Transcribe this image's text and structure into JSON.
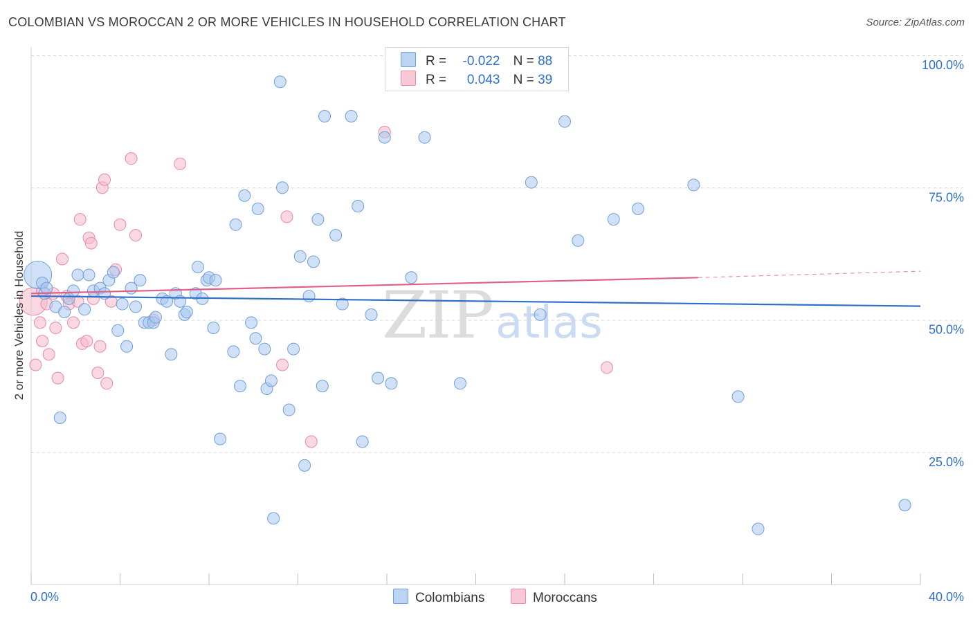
{
  "header": {
    "title": "COLOMBIAN VS MOROCCAN 2 OR MORE VEHICLES IN HOUSEHOLD CORRELATION CHART",
    "source": "Source: ZipAtlas.com"
  },
  "legend": {
    "rows": [
      {
        "r_label": "R =",
        "r_value": "-0.022",
        "n_label": "N =",
        "n_value": "88"
      },
      {
        "r_label": "R =",
        "r_value": "0.043",
        "n_label": "N =",
        "n_value": "39"
      }
    ]
  },
  "bottom_legend": {
    "colombians": "Colombians",
    "moroccans": "Moroccans"
  },
  "watermark": {
    "zip": "ZIP",
    "atlas": "atlas"
  },
  "colors": {
    "blue_fill": "#aac8f0",
    "blue_stroke": "#6e9fdc",
    "blue_line": "#2f6fc8",
    "pink_fill": "#f5b8cb",
    "pink_stroke": "#e88aa8",
    "pink_line": "#e0608a",
    "axis_label": "#2f6fc8",
    "grid": "#d4d4d4"
  },
  "chart_data": {
    "type": "scatter",
    "title": "COLOMBIAN VS MOROCCAN 2 OR MORE VEHICLES IN HOUSEHOLD CORRELATION CHART",
    "xlabel": "",
    "ylabel": "2 or more Vehicles in Household",
    "xlim": [
      0,
      40
    ],
    "ylim": [
      0,
      100
    ],
    "x_tick_labels": [
      {
        "value": 0,
        "label": "0.0%"
      },
      {
        "value": 40,
        "label": "40.0%"
      }
    ],
    "y_tick_labels": [
      {
        "value": 25,
        "label": "25.0%"
      },
      {
        "value": 50,
        "label": "50.0%"
      },
      {
        "value": 75,
        "label": "75.0%"
      },
      {
        "value": 100,
        "label": "100.0%"
      }
    ],
    "series": [
      {
        "name": "Colombians",
        "r": -0.022,
        "n": 88,
        "trend": {
          "x0": 0,
          "y0": 54.5,
          "x1": 40,
          "y1": 52.6
        },
        "points": [
          {
            "x": 0.3,
            "y": 58.5,
            "size": "large"
          },
          {
            "x": 0.5,
            "y": 57
          },
          {
            "x": 0.6,
            "y": 55
          },
          {
            "x": 0.7,
            "y": 56
          },
          {
            "x": 1.1,
            "y": 52.5
          },
          {
            "x": 1.3,
            "y": 31.5
          },
          {
            "x": 1.5,
            "y": 51.5
          },
          {
            "x": 1.7,
            "y": 54
          },
          {
            "x": 1.9,
            "y": 55.5
          },
          {
            "x": 2.1,
            "y": 58.5
          },
          {
            "x": 2.4,
            "y": 52
          },
          {
            "x": 2.6,
            "y": 58.5
          },
          {
            "x": 2.8,
            "y": 55.5
          },
          {
            "x": 3.1,
            "y": 56
          },
          {
            "x": 3.3,
            "y": 55
          },
          {
            "x": 3.5,
            "y": 57.5
          },
          {
            "x": 3.7,
            "y": 59
          },
          {
            "x": 3.9,
            "y": 48
          },
          {
            "x": 4.1,
            "y": 53
          },
          {
            "x": 4.3,
            "y": 45
          },
          {
            "x": 4.5,
            "y": 56
          },
          {
            "x": 4.7,
            "y": 52.5
          },
          {
            "x": 4.9,
            "y": 57.5
          },
          {
            "x": 5.1,
            "y": 49.5
          },
          {
            "x": 5.3,
            "y": 49.5
          },
          {
            "x": 5.5,
            "y": 49.5
          },
          {
            "x": 5.6,
            "y": 50.5
          },
          {
            "x": 5.9,
            "y": 54
          },
          {
            "x": 6.1,
            "y": 53.5
          },
          {
            "x": 6.3,
            "y": 43.5
          },
          {
            "x": 6.5,
            "y": 55
          },
          {
            "x": 6.7,
            "y": 53.5
          },
          {
            "x": 6.9,
            "y": 51
          },
          {
            "x": 7.0,
            "y": 51.5
          },
          {
            "x": 7.4,
            "y": 55
          },
          {
            "x": 7.5,
            "y": 60
          },
          {
            "x": 7.7,
            "y": 54
          },
          {
            "x": 7.9,
            "y": 57.5
          },
          {
            "x": 8.0,
            "y": 58
          },
          {
            "x": 8.2,
            "y": 48.5
          },
          {
            "x": 8.3,
            "y": 57.5
          },
          {
            "x": 8.5,
            "y": 27.5
          },
          {
            "x": 9.1,
            "y": 44
          },
          {
            "x": 9.2,
            "y": 68
          },
          {
            "x": 9.4,
            "y": 37.5
          },
          {
            "x": 9.6,
            "y": 73.5
          },
          {
            "x": 9.9,
            "y": 49.5
          },
          {
            "x": 10.1,
            "y": 46.5
          },
          {
            "x": 10.2,
            "y": 71
          },
          {
            "x": 10.5,
            "y": 44.5
          },
          {
            "x": 10.6,
            "y": 37
          },
          {
            "x": 10.8,
            "y": 38.5
          },
          {
            "x": 10.9,
            "y": 12.5
          },
          {
            "x": 11.2,
            "y": 95
          },
          {
            "x": 11.3,
            "y": 75
          },
          {
            "x": 11.6,
            "y": 33
          },
          {
            "x": 11.8,
            "y": 44.5
          },
          {
            "x": 12.1,
            "y": 62
          },
          {
            "x": 12.3,
            "y": 22.5
          },
          {
            "x": 12.5,
            "y": 54.5
          },
          {
            "x": 12.7,
            "y": 61
          },
          {
            "x": 12.9,
            "y": 69
          },
          {
            "x": 13.1,
            "y": 37.5
          },
          {
            "x": 13.2,
            "y": 88.5
          },
          {
            "x": 13.7,
            "y": 66
          },
          {
            "x": 14.0,
            "y": 53
          },
          {
            "x": 14.4,
            "y": 88.5
          },
          {
            "x": 14.7,
            "y": 71.5
          },
          {
            "x": 14.9,
            "y": 27
          },
          {
            "x": 15.3,
            "y": 51
          },
          {
            "x": 15.6,
            "y": 39
          },
          {
            "x": 15.9,
            "y": 84.5
          },
          {
            "x": 16.2,
            "y": 38
          },
          {
            "x": 17.1,
            "y": 58
          },
          {
            "x": 17.7,
            "y": 84.5
          },
          {
            "x": 19.3,
            "y": 38
          },
          {
            "x": 22.5,
            "y": 76
          },
          {
            "x": 22.9,
            "y": 51
          },
          {
            "x": 24.0,
            "y": 87.5
          },
          {
            "x": 24.6,
            "y": 65
          },
          {
            "x": 26.2,
            "y": 69
          },
          {
            "x": 27.3,
            "y": 71
          },
          {
            "x": 29.8,
            "y": 75.5
          },
          {
            "x": 31.8,
            "y": 35.5
          },
          {
            "x": 32.7,
            "y": 10.5
          },
          {
            "x": 39.3,
            "y": 15
          }
        ]
      },
      {
        "name": "Moroccans",
        "r": 0.043,
        "n": 39,
        "trend": {
          "x0": 0,
          "y0": 55.0,
          "x1": 30,
          "y1": 58.0
        },
        "trend_dashed": {
          "x0": 30,
          "y0": 58.0,
          "x1": 40,
          "y1": 59.2
        },
        "points": [
          {
            "x": 0.1,
            "y": 53.5,
            "size": "large"
          },
          {
            "x": 0.2,
            "y": 41.5
          },
          {
            "x": 0.4,
            "y": 49.5
          },
          {
            "x": 0.5,
            "y": 55.5
          },
          {
            "x": 0.5,
            "y": 46
          },
          {
            "x": 0.7,
            "y": 53
          },
          {
            "x": 0.8,
            "y": 43.5
          },
          {
            "x": 1.0,
            "y": 55
          },
          {
            "x": 1.1,
            "y": 48.5
          },
          {
            "x": 1.2,
            "y": 39
          },
          {
            "x": 1.4,
            "y": 61.5
          },
          {
            "x": 1.6,
            "y": 54.5
          },
          {
            "x": 1.7,
            "y": 53
          },
          {
            "x": 1.9,
            "y": 49.5
          },
          {
            "x": 2.1,
            "y": 53.5
          },
          {
            "x": 2.2,
            "y": 69
          },
          {
            "x": 2.3,
            "y": 45.5
          },
          {
            "x": 2.5,
            "y": 46
          },
          {
            "x": 2.6,
            "y": 65.5
          },
          {
            "x": 2.7,
            "y": 64.5
          },
          {
            "x": 2.8,
            "y": 54
          },
          {
            "x": 3.0,
            "y": 40
          },
          {
            "x": 3.1,
            "y": 45
          },
          {
            "x": 3.2,
            "y": 75
          },
          {
            "x": 3.3,
            "y": 76.5
          },
          {
            "x": 3.4,
            "y": 38
          },
          {
            "x": 3.6,
            "y": 53.5
          },
          {
            "x": 3.8,
            "y": 59.5
          },
          {
            "x": 4.0,
            "y": 68
          },
          {
            "x": 4.5,
            "y": 80.5
          },
          {
            "x": 4.7,
            "y": 66
          },
          {
            "x": 5.5,
            "y": 50
          },
          {
            "x": 6.7,
            "y": 79.5
          },
          {
            "x": 11.3,
            "y": 41.5
          },
          {
            "x": 11.5,
            "y": 69.5
          },
          {
            "x": 12.6,
            "y": 27
          },
          {
            "x": 15.9,
            "y": 85.5
          },
          {
            "x": 25.9,
            "y": 41
          }
        ]
      }
    ]
  }
}
